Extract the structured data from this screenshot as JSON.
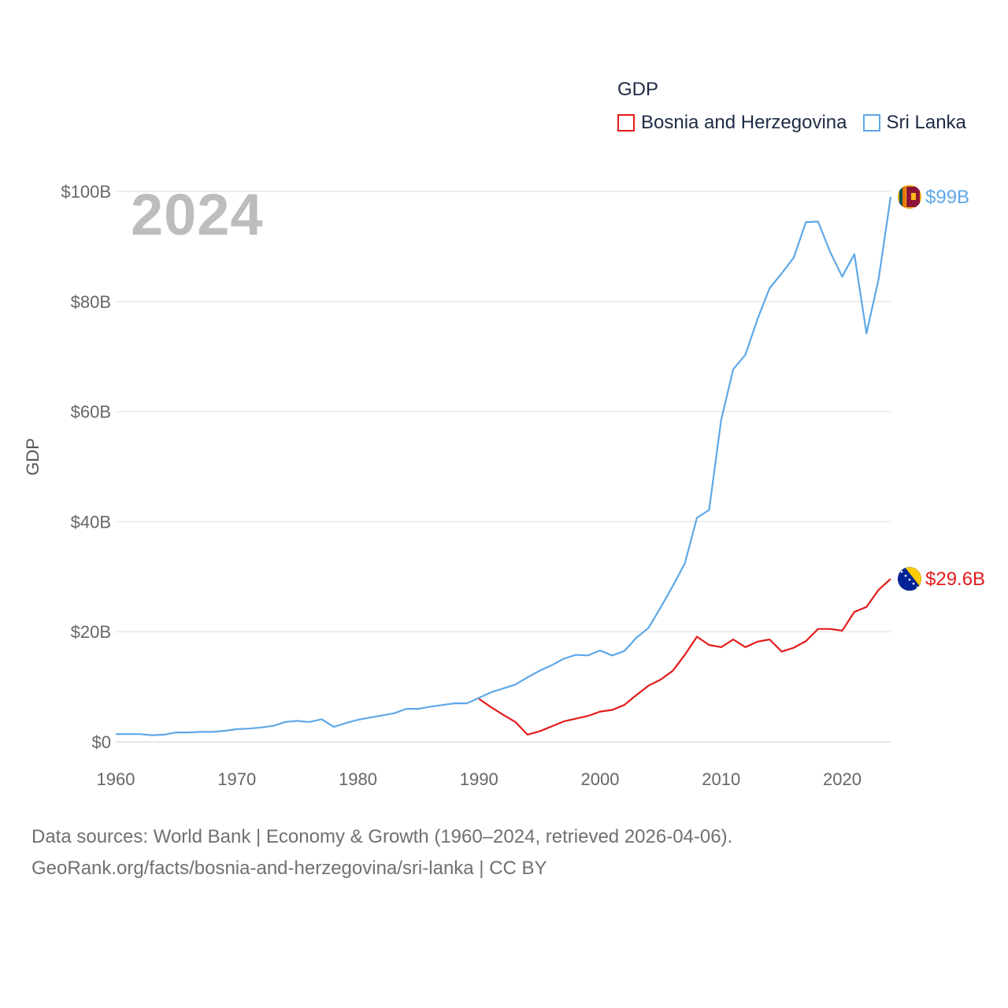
{
  "legend": {
    "title": "GDP",
    "items": [
      {
        "label": "Bosnia and Herzegovina",
        "color": "#e31b1b"
      },
      {
        "label": "Sri Lanka",
        "color": "#5ea8e8"
      }
    ]
  },
  "year_label": "2024",
  "source": {
    "line1": "Data sources: World Bank | Economy & Growth (1960–2024, retrieved 2026-04-06).",
    "line2": "GeoRank.org/facts/bosnia-and-herzegovina/sri-lanka | CC BY"
  },
  "chart_data": {
    "type": "line",
    "title": "GDP",
    "xlabel": "",
    "ylabel": "GDP",
    "xlim": [
      1960,
      2024
    ],
    "ylim": [
      0,
      100
    ],
    "x_ticks": [
      1960,
      1970,
      1980,
      1990,
      2000,
      2010,
      2020
    ],
    "x_tick_labels": [
      "1960",
      "1970",
      "1980",
      "1990",
      "2000",
      "2010",
      "2020"
    ],
    "y_ticks": [
      0,
      20,
      40,
      60,
      80,
      100
    ],
    "y_tick_labels": [
      "$0",
      "$20B",
      "$40B",
      "$60B",
      "$80B",
      "$100B"
    ],
    "grid": true,
    "legend_position": "top-right",
    "series": [
      {
        "name": "Sri Lanka",
        "color": "#5ea8e8",
        "end_label": "$99B",
        "flag_icon": "sri-lanka-flag-icon",
        "points": [
          [
            1960,
            1.4
          ],
          [
            1961,
            1.4
          ],
          [
            1962,
            1.4
          ],
          [
            1963,
            1.2
          ],
          [
            1964,
            1.3
          ],
          [
            1965,
            1.7
          ],
          [
            1966,
            1.7
          ],
          [
            1967,
            1.8
          ],
          [
            1968,
            1.8
          ],
          [
            1969,
            2.0
          ],
          [
            1970,
            2.3
          ],
          [
            1971,
            2.4
          ],
          [
            1972,
            2.6
          ],
          [
            1973,
            2.9
          ],
          [
            1974,
            3.6
          ],
          [
            1975,
            3.8
          ],
          [
            1976,
            3.6
          ],
          [
            1977,
            4.1
          ],
          [
            1978,
            2.7
          ],
          [
            1979,
            3.4
          ],
          [
            1980,
            4.0
          ],
          [
            1981,
            4.4
          ],
          [
            1982,
            4.8
          ],
          [
            1983,
            5.2
          ],
          [
            1984,
            6.0
          ],
          [
            1985,
            6.0
          ],
          [
            1986,
            6.4
          ],
          [
            1987,
            6.7
          ],
          [
            1988,
            7.0
          ],
          [
            1989,
            7.0
          ],
          [
            1990,
            8.0
          ],
          [
            1991,
            9.0
          ],
          [
            1992,
            9.7
          ],
          [
            1993,
            10.4
          ],
          [
            1994,
            11.7
          ],
          [
            1995,
            12.9
          ],
          [
            1996,
            13.9
          ],
          [
            1997,
            15.1
          ],
          [
            1998,
            15.8
          ],
          [
            1999,
            15.7
          ],
          [
            2000,
            16.6
          ],
          [
            2001,
            15.7
          ],
          [
            2002,
            16.5
          ],
          [
            2003,
            18.9
          ],
          [
            2004,
            20.7
          ],
          [
            2005,
            24.4
          ],
          [
            2006,
            28.3
          ],
          [
            2007,
            32.4
          ],
          [
            2008,
            40.7
          ],
          [
            2009,
            42.1
          ],
          [
            2010,
            58.5
          ],
          [
            2011,
            67.7
          ],
          [
            2012,
            70.3
          ],
          [
            2013,
            76.8
          ],
          [
            2014,
            82.4
          ],
          [
            2015,
            85.1
          ],
          [
            2016,
            88.0
          ],
          [
            2017,
            94.4
          ],
          [
            2018,
            94.5
          ],
          [
            2019,
            89.0
          ],
          [
            2020,
            84.5
          ],
          [
            2021,
            88.6
          ],
          [
            2022,
            74.2
          ],
          [
            2023,
            84.0
          ],
          [
            2024,
            99.0
          ]
        ]
      },
      {
        "name": "Bosnia and Herzegovina",
        "color": "#e31b1b",
        "end_label": "$29.6B",
        "flag_icon": "bosnia-flag-icon",
        "points": [
          [
            1990,
            7.8
          ],
          [
            1991,
            6.3
          ],
          [
            1992,
            4.9
          ],
          [
            1993,
            3.6
          ],
          [
            1994,
            1.3
          ],
          [
            1995,
            1.9
          ],
          [
            1996,
            2.8
          ],
          [
            1997,
            3.7
          ],
          [
            1998,
            4.2
          ],
          [
            1999,
            4.7
          ],
          [
            2000,
            5.5
          ],
          [
            2001,
            5.8
          ],
          [
            2002,
            6.7
          ],
          [
            2003,
            8.5
          ],
          [
            2004,
            10.2
          ],
          [
            2005,
            11.3
          ],
          [
            2006,
            12.9
          ],
          [
            2007,
            15.8
          ],
          [
            2008,
            19.1
          ],
          [
            2009,
            17.6
          ],
          [
            2010,
            17.2
          ],
          [
            2011,
            18.6
          ],
          [
            2012,
            17.2
          ],
          [
            2013,
            18.2
          ],
          [
            2014,
            18.6
          ],
          [
            2015,
            16.4
          ],
          [
            2016,
            17.1
          ],
          [
            2017,
            18.3
          ],
          [
            2018,
            20.5
          ],
          [
            2019,
            20.5
          ],
          [
            2020,
            20.2
          ],
          [
            2021,
            23.6
          ],
          [
            2022,
            24.5
          ],
          [
            2023,
            27.6
          ],
          [
            2024,
            29.6
          ]
        ]
      }
    ]
  }
}
